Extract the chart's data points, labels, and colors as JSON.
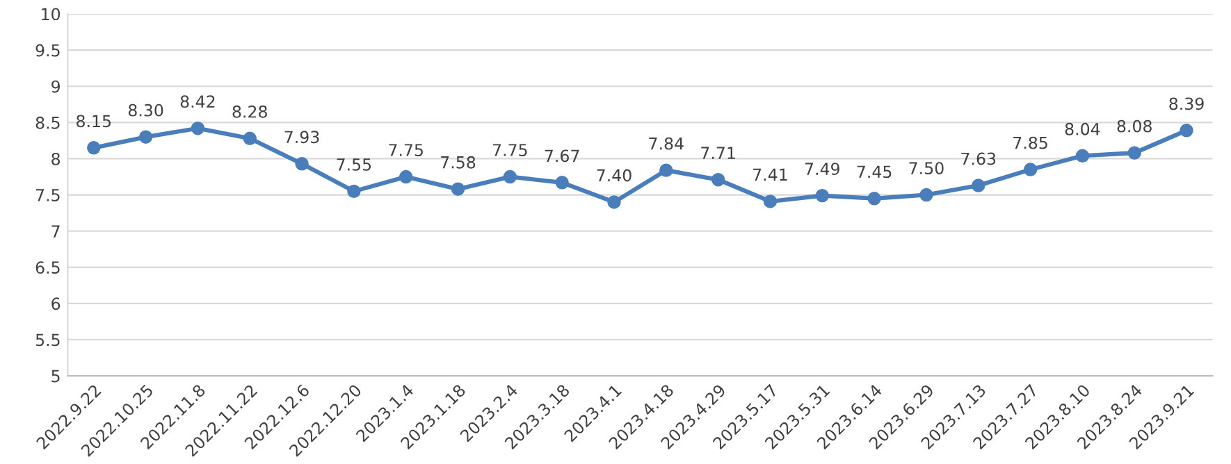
{
  "chart_data": {
    "type": "line",
    "categories": [
      "2022.9.22",
      "2022.10.25",
      "2022.11.8",
      "2022.11.22",
      "2022.12.6",
      "2022.12.20",
      "2023.1.4",
      "2023.1.18",
      "2023.2.4",
      "2023.3.18",
      "2023.4.1",
      "2023.4.18",
      "2023.4.29",
      "2023.5.17",
      "2023.5.31",
      "2023.6.14",
      "2023.6.29",
      "2023.7.13",
      "2023.7.27",
      "2023.8.10",
      "2023.8.24",
      "2023.9.21"
    ],
    "series": [
      {
        "color": "#4a7ebb",
        "values": [
          8.15,
          8.3,
          8.42,
          8.28,
          7.93,
          7.55,
          7.75,
          7.58,
          7.75,
          7.67,
          7.4,
          7.84,
          7.71,
          7.41,
          7.49,
          7.45,
          7.5,
          7.63,
          7.85,
          8.04,
          8.08,
          8.39
        ],
        "value_labels": [
          "8.15",
          "8.30",
          "8.42",
          "8.28",
          "7.93",
          "7.55",
          "7.75",
          "7.58",
          "7.75",
          "7.67",
          "7.40",
          "7.84",
          "7.71",
          "7.41",
          "7.49",
          "7.45",
          "7.50",
          "7.63",
          "7.85",
          "8.04",
          "8.08",
          "8.39"
        ]
      }
    ],
    "ylim": [
      5,
      10
    ],
    "yticks": [
      5,
      5.5,
      6,
      6.5,
      7,
      7.5,
      8,
      8.5,
      9,
      9.5,
      10
    ],
    "grid": "y",
    "marker": "circle",
    "line_style": "solid",
    "legend": false
  }
}
